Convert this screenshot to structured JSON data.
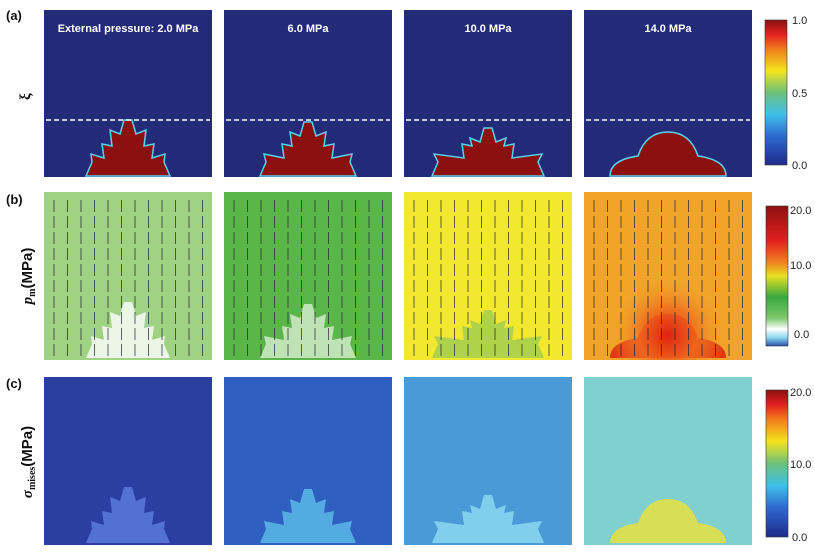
{
  "rows": [
    {
      "label": "(a)",
      "quantity": "ξ",
      "colorbar": {
        "max": "1.0",
        "mid": "0.5",
        "min": "0.0"
      }
    },
    {
      "label": "(b)",
      "quantity": "p",
      "subscript": "m",
      "unit": "(MPa)",
      "colorbar": {
        "max": "20.0",
        "mid": "10.0",
        "min": "0.0"
      }
    },
    {
      "label": "(c)",
      "quantity": "σ",
      "subscript": "mises",
      "unit": "(MPa)",
      "colorbar": {
        "max": "20.0",
        "mid": "10.0",
        "min": "0.0"
      }
    }
  ],
  "columns": [
    {
      "title": "External pressure: 2.0 MPa"
    },
    {
      "title": "6.0 MPa"
    },
    {
      "title": "10.0 MPa"
    },
    {
      "title": "14.0 MPa"
    }
  ],
  "colors": {
    "phase_background": "#232a78",
    "phase_dendrite": "#8b1010",
    "pm_backgrounds": [
      "#9fd283",
      "#5bb64a",
      "#f2e82e",
      "#f0a52a"
    ],
    "mises_backgrounds": [
      "#2a3fa0",
      "#2f5fc0",
      "#4a9ad8",
      "#7fd0cf"
    ]
  }
}
